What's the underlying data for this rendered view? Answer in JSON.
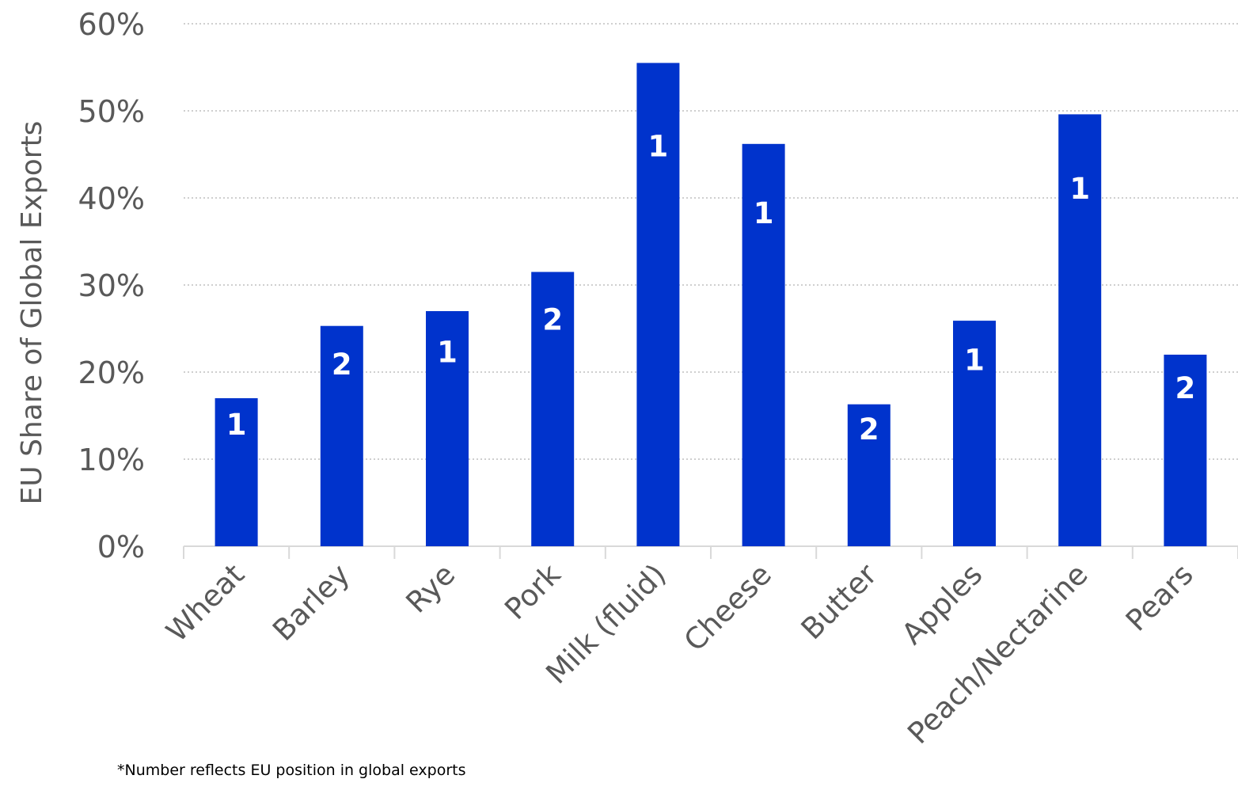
{
  "chart_data": {
    "type": "bar",
    "title": "",
    "xlabel": "",
    "ylabel": "EU Share of Global Exports",
    "categories": [
      "Wheat",
      "Barley",
      "Rye",
      "Pork",
      "Milk (fluid)",
      "Cheese",
      "Butter",
      "Apples",
      "Peach/Nectarine",
      "Pears"
    ],
    "values": [
      17,
      25.3,
      27,
      31.5,
      55.5,
      46.2,
      16.3,
      25.9,
      49.6,
      22
    ],
    "data_labels": [
      "1",
      "2",
      "1",
      "2",
      "1",
      "1",
      "2",
      "1",
      "1",
      "2"
    ],
    "ylim": [
      0,
      60
    ],
    "yticks": [
      0,
      10,
      20,
      30,
      40,
      50,
      60
    ],
    "ytick_labels": [
      "0%",
      "10%",
      "20%",
      "30%",
      "40%",
      "50%",
      "60%"
    ],
    "grid": true,
    "bar_color": "#0033CC",
    "footnote": "*Number reflects EU position in global exports"
  }
}
